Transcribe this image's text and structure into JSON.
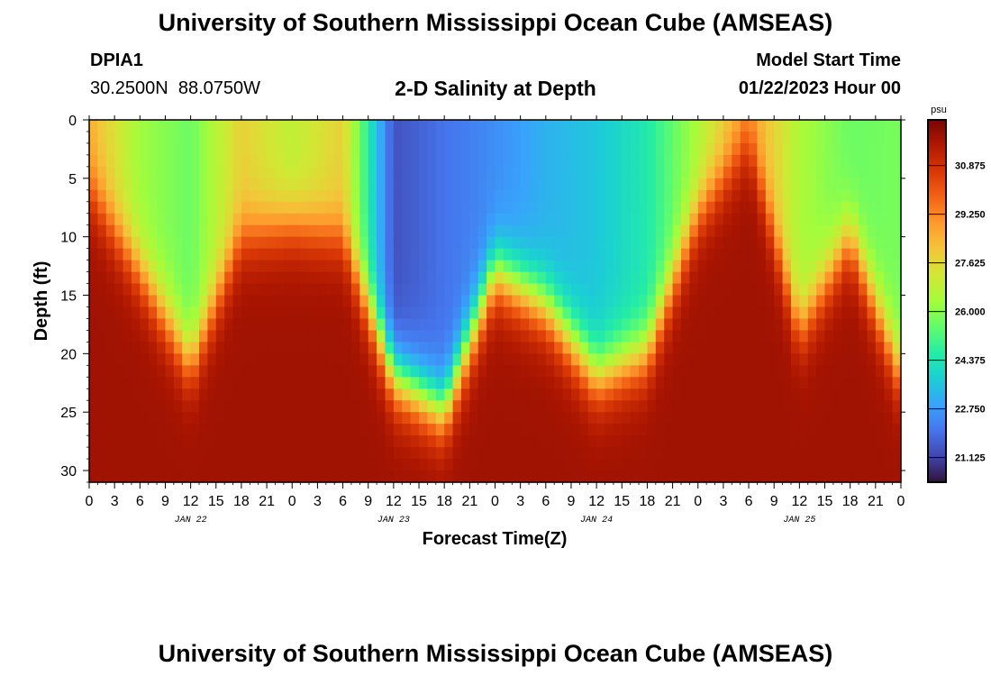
{
  "header": {
    "title_top": "University of Southern Mississippi Ocean Cube (AMSEAS)",
    "station_id": "DPIA1",
    "station_coords": "30.2500N  88.0750W",
    "chart_subtitle": "2-D Salinity at Depth",
    "model_start_label": "Model Start Time",
    "model_start_value": "01/22/2023 Hour 00",
    "title_bottom": "University of Southern Mississippi Ocean Cube (AMSEAS)"
  },
  "colors": {
    "colormap": [
      "#30123b",
      "#4145ab",
      "#4675ed",
      "#39a2fc",
      "#1bcfd4",
      "#24eca6",
      "#61fc6c",
      "#a4fc3b",
      "#d1e834",
      "#f3c63a",
      "#fe9b2d",
      "#f36315",
      "#d93806",
      "#b11901",
      "#7a0403"
    ]
  },
  "chart_data": {
    "type": "heatmap",
    "title": "2-D Salinity at Depth",
    "xlabel": "Forecast Time(Z)",
    "ylabel": "Depth (ft)",
    "colorbar_label": "psu",
    "x_hours": [
      0,
      96
    ],
    "depth_range_ft": [
      0,
      31
    ],
    "x_ticks": [
      "0",
      "3",
      "6",
      "9",
      "12",
      "15",
      "18",
      "21",
      "0",
      "3",
      "6",
      "9",
      "12",
      "15",
      "18",
      "21",
      "0",
      "3",
      "6",
      "9",
      "12",
      "15",
      "18",
      "21",
      "0",
      "3",
      "6",
      "9",
      "12",
      "15",
      "18",
      "21",
      "0"
    ],
    "y_ticks": [
      0,
      5,
      10,
      15,
      20,
      25,
      30
    ],
    "date_labels": [
      {
        "label": "JAN 22",
        "hour": 12
      },
      {
        "label": "JAN 23",
        "hour": 36
      },
      {
        "label": "JAN 24",
        "hour": 60
      },
      {
        "label": "JAN 25",
        "hour": 84
      }
    ],
    "colorbar_range": [
      20.3,
      32.4
    ],
    "colorbar_ticks": [
      "30.875",
      "29.250",
      "27.625",
      "26.000",
      "24.375",
      "22.750",
      "21.125"
    ],
    "surface_salinity_by_hour": [
      {
        "hour": 0,
        "psu": 28.5
      },
      {
        "hour": 6,
        "psu": 26.3
      },
      {
        "hour": 12,
        "psu": 25.6
      },
      {
        "hour": 18,
        "psu": 27.8
      },
      {
        "hour": 24,
        "psu": 26.8
      },
      {
        "hour": 30,
        "psu": 27.8
      },
      {
        "hour": 36,
        "psu": 21.4
      },
      {
        "hour": 42,
        "psu": 22.0
      },
      {
        "hour": 48,
        "psu": 22.5
      },
      {
        "hour": 54,
        "psu": 23.2
      },
      {
        "hour": 60,
        "psu": 23.6
      },
      {
        "hour": 66,
        "psu": 24.5
      },
      {
        "hour": 72,
        "psu": 26.5
      },
      {
        "hour": 78,
        "psu": 29.0
      },
      {
        "hour": 84,
        "psu": 26.5
      },
      {
        "hour": 90,
        "psu": 25.6
      },
      {
        "hour": 96,
        "psu": 25.8
      }
    ],
    "halocline_depth_ft_by_hour": [
      {
        "hour": 0,
        "depth": 6
      },
      {
        "hour": 6,
        "depth": 13
      },
      {
        "hour": 12,
        "depth": 21
      },
      {
        "hour": 18,
        "depth": 10
      },
      {
        "hour": 24,
        "depth": 9
      },
      {
        "hour": 30,
        "depth": 10
      },
      {
        "hour": 36,
        "depth": 22
      },
      {
        "hour": 42,
        "depth": 25
      },
      {
        "hour": 48,
        "depth": 13
      },
      {
        "hour": 54,
        "depth": 16
      },
      {
        "hour": 60,
        "depth": 22
      },
      {
        "hour": 66,
        "depth": 20
      },
      {
        "hour": 72,
        "depth": 8
      },
      {
        "hour": 78,
        "depth": 2
      },
      {
        "hour": 84,
        "depth": 18
      },
      {
        "hour": 90,
        "depth": 10
      },
      {
        "hour": 96,
        "depth": 22
      }
    ],
    "bottom_salinity_psu": 31.8
  }
}
